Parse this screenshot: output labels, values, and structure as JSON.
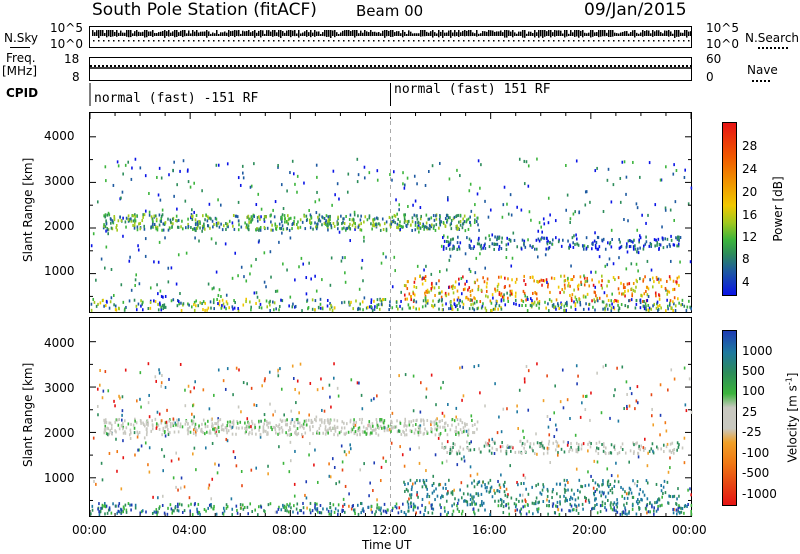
{
  "header": {
    "station_title": "South Pole Station (fitACF)",
    "beam": "Beam 00",
    "date": "09/Jan/2015"
  },
  "top_panels": {
    "nsky_label": "N.Sky",
    "nsky_ticks": [
      "10^5",
      "10^0"
    ],
    "nsearch_label": "N.Search",
    "nsearch_ticks": [
      "10^5",
      "10^0"
    ],
    "freq_label": "Freq.",
    "freq_unit": "[MHz]",
    "freq_ticks": [
      "18",
      "8"
    ],
    "nave_label": "Nave",
    "nave_ticks": [
      "60",
      "0"
    ],
    "cpid_label": "CPID",
    "cpid_segments": [
      {
        "label": "normal (fast) -151 RF",
        "start_hour": 0,
        "end_hour": 12
      },
      {
        "label": "normal (fast) 151 RF",
        "start_hour": 12,
        "end_hour": 24
      }
    ]
  },
  "chart_data": [
    {
      "type": "heatmap",
      "name": "power",
      "ylabel": "Slant Range [km]",
      "ylim": [
        180,
        4500
      ],
      "yticks": [
        "1000",
        "2000",
        "3000",
        "4000"
      ],
      "xlabel": "Time UT",
      "xlim": [
        0,
        24
      ],
      "xticks": [
        "00:00",
        "04:00",
        "08:00",
        "12:00",
        "16:00",
        "20:00",
        "00:00"
      ],
      "colorbar_label": "Power [dB]",
      "colorbar_ticks": [
        "4",
        "8",
        "12",
        "16",
        "20",
        "24",
        "28"
      ],
      "colorbar_colors": [
        "#0a14e6",
        "#1e5aa0",
        "#2d8c5a",
        "#3cb43c",
        "#a0c81e",
        "#f0c800",
        "#f09600",
        "#f05a00",
        "#e61414"
      ],
      "echo_bands": [
        {
          "t0": 0.5,
          "t1": 15.5,
          "range": 2150,
          "width": 220,
          "note": "patchy F-region band"
        },
        {
          "t0": 14.0,
          "t1": 23.5,
          "range": 1700,
          "width": 200,
          "note": "lower F-region band"
        },
        {
          "t0": 12.5,
          "t1": 23.5,
          "range": 700,
          "width": 350,
          "note": "strong near-range echoes"
        }
      ]
    },
    {
      "type": "heatmap",
      "name": "velocity",
      "ylabel": "Slant Range [km]",
      "ylim": [
        180,
        4500
      ],
      "yticks": [
        "1000",
        "2000",
        "3000",
        "4000"
      ],
      "xlabel": "Time UT",
      "xlim": [
        0,
        24
      ],
      "xticks": [
        "00:00",
        "04:00",
        "08:00",
        "12:00",
        "16:00",
        "20:00",
        "00:00"
      ],
      "colorbar_label": "Velocity [m s",
      "colorbar_label_sup": "-1",
      "colorbar_label_end": "]",
      "colorbar_ticks": [
        "1000",
        "500",
        "100",
        "25",
        "-25",
        "-100",
        "-500",
        "-1000"
      ],
      "colorbar_colors": [
        "#1e3cb4",
        "#1e78a0",
        "#2d8c5a",
        "#3cb43c",
        "#c8c8c0",
        "#f0a028",
        "#f07814",
        "#e64614",
        "#e61414"
      ]
    }
  ]
}
